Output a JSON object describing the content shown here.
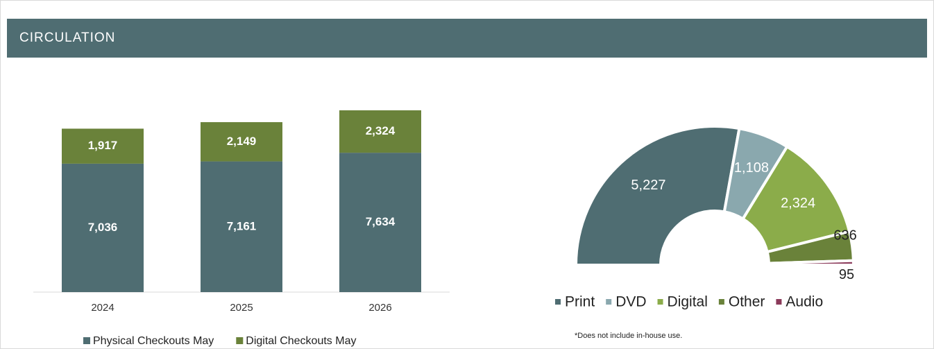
{
  "header": {
    "title": "CIRCULATION"
  },
  "chart_data": [
    {
      "type": "bar",
      "stacked": true,
      "categories": [
        "2024",
        "2025",
        "2026"
      ],
      "series": [
        {
          "name": "Physical Checkouts May",
          "color": "#4f6d72",
          "values": [
            7036,
            7161,
            7634
          ],
          "value_labels": [
            "7,036",
            "7,161",
            "7,634"
          ]
        },
        {
          "name": "Digital Checkouts May",
          "color": "#6a823a",
          "values": [
            1917,
            2149,
            2324
          ],
          "value_labels": [
            "1,917",
            "2,149",
            "2,324"
          ]
        }
      ]
    },
    {
      "type": "pie",
      "half_donut": true,
      "categories": [
        "Print",
        "DVD",
        "Digital",
        "Other",
        "Audio"
      ],
      "values": [
        5227,
        1108,
        2324,
        636,
        95
      ],
      "value_labels": [
        "5,227",
        "1,108",
        "2,324",
        "636",
        "95"
      ],
      "colors": [
        "#4f6d72",
        "#8aa8ae",
        "#8bac4a",
        "#6a823a",
        "#8b3a5a"
      ],
      "footnote": "*Does not include in-house use."
    }
  ]
}
